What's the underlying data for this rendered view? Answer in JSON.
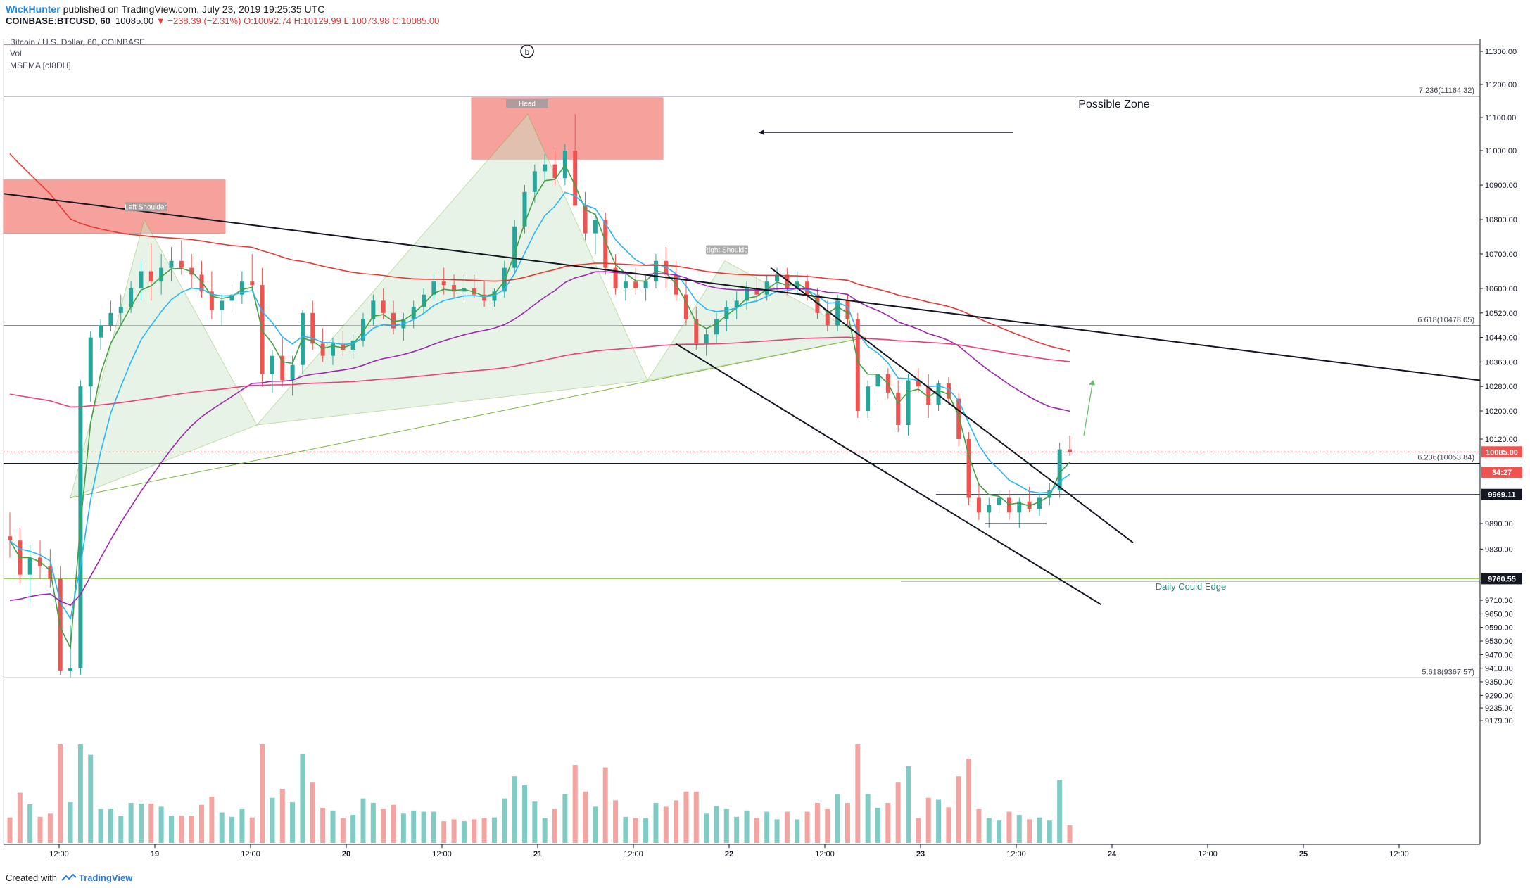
{
  "header": {
    "author": "WickHunter",
    "published_text": "published on TradingView.com, July 23, 2019 19:25:35 UTC",
    "symbol": "COINBASE:BTCUSD, 60",
    "last": "10085.00",
    "change": "▼ −238.39 (−2.31%)",
    "ohlc": "O:10092.74 H:10129.99 L:10073.98 C:10085.00"
  },
  "legend": {
    "title": "Bitcoin / U.S. Dollar, 60, COINBASE",
    "vol": "Vol",
    "msema": "MSEMA [cI8DH]",
    "marker": "b"
  },
  "footer": {
    "created_with": "Created with",
    "brand": "TradingView"
  },
  "chart_data": {
    "type": "candlestick",
    "symbol": "COINBASE:BTCUSD",
    "interval": "60",
    "y_axis": {
      "ticks": [
        11300.0,
        11200.0,
        11100.0,
        11000.0,
        10900.0,
        10800.0,
        10700.0,
        10600.0,
        10520.0,
        10440.0,
        10360.0,
        10280.0,
        10200.0,
        10120.0,
        9890.0,
        9830.0,
        9710.0,
        9650.0,
        9590.0,
        9530.0,
        9470.0,
        9410.0,
        9350.0,
        9290.0,
        9235.0,
        9179.0
      ]
    },
    "x_axis": {
      "labels": [
        "12:00",
        "19",
        "12:00",
        "20",
        "12:00",
        "21",
        "12:00",
        "22",
        "12:00",
        "23",
        "12:00",
        "24",
        "12:00",
        "25",
        "12:00"
      ]
    },
    "price_tags": [
      {
        "value": 10085.0,
        "label": "10085.00",
        "color": "#ef5350"
      },
      {
        "value": 10030.0,
        "label": "34:27",
        "color": "#ef5350"
      },
      {
        "value": 9969.11,
        "label": "9969.11",
        "color": "#131722"
      },
      {
        "value": 9760.55,
        "label": "9760.55",
        "color": "#131722"
      }
    ],
    "fib_levels": [
      {
        "value": 11164.32,
        "label": "7.236(11164.32)"
      },
      {
        "value": 10478.05,
        "label": "6.618(10478.05)"
      },
      {
        "value": 10053.84,
        "label": "6.236(10053.84)"
      },
      {
        "value": 9367.57,
        "label": "5.618(9367.57)"
      }
    ],
    "annotations": {
      "possible_zone": "Possible Zone",
      "daily_cloud": "Daily Could Edge",
      "left_shoulder": "Left Shoulder",
      "head": "Head",
      "right_shoulder": "Right Shoulder"
    },
    "colors": {
      "up": "#26a69a",
      "down": "#ef5350",
      "vol_up": "#80cbc4",
      "vol_down": "#f4a4a0",
      "ema_green": "#43a047",
      "ema_blue": "#29b6f6",
      "ema_purple": "#9c27b0",
      "ema_red": "#e53935",
      "ema_pink": "#ec407a",
      "zone": "#f4827b"
    },
    "candles_ohlc": [
      [
        9860,
        9920,
        9810,
        9850
      ],
      [
        9850,
        9880,
        9750,
        9770
      ],
      [
        9770,
        9840,
        9700,
        9810
      ],
      [
        9810,
        9850,
        9760,
        9790
      ],
      [
        9790,
        9830,
        9740,
        9760
      ],
      [
        9760,
        9790,
        9380,
        9400
      ],
      [
        9400,
        9600,
        9370,
        9410
      ],
      [
        9410,
        10300,
        9380,
        10280
      ],
      [
        10280,
        10460,
        10230,
        10440
      ],
      [
        10440,
        10500,
        10400,
        10480
      ],
      [
        10480,
        10560,
        10460,
        10520
      ],
      [
        10520,
        10580,
        10480,
        10540
      ],
      [
        10540,
        10620,
        10520,
        10600
      ],
      [
        10600,
        10680,
        10560,
        10650
      ],
      [
        10650,
        10730,
        10560,
        10620
      ],
      [
        10620,
        10700,
        10580,
        10660
      ],
      [
        10660,
        10720,
        10620,
        10680
      ],
      [
        10680,
        10740,
        10640,
        10660
      ],
      [
        10660,
        10700,
        10600,
        10640
      ],
      [
        10640,
        10680,
        10570,
        10590
      ],
      [
        10590,
        10650,
        10500,
        10530
      ],
      [
        10530,
        10580,
        10480,
        10560
      ],
      [
        10560,
        10610,
        10520,
        10580
      ],
      [
        10580,
        10650,
        10550,
        10620
      ],
      [
        10620,
        10700,
        10590,
        10610
      ],
      [
        10610,
        10660,
        10280,
        10320
      ],
      [
        10320,
        10400,
        10260,
        10380
      ],
      [
        10380,
        10440,
        10280,
        10300
      ],
      [
        10300,
        10380,
        10250,
        10350
      ],
      [
        10350,
        10530,
        10320,
        10520
      ],
      [
        10520,
        10560,
        10400,
        10420
      ],
      [
        10420,
        10470,
        10360,
        10380
      ],
      [
        10380,
        10440,
        10350,
        10420
      ],
      [
        10420,
        10460,
        10380,
        10400
      ],
      [
        10400,
        10450,
        10370,
        10430
      ],
      [
        10430,
        10520,
        10410,
        10500
      ],
      [
        10500,
        10580,
        10480,
        10560
      ],
      [
        10560,
        10600,
        10500,
        10520
      ],
      [
        10520,
        10560,
        10450,
        10470
      ],
      [
        10470,
        10520,
        10430,
        10500
      ],
      [
        10500,
        10560,
        10470,
        10540
      ],
      [
        10540,
        10600,
        10520,
        10580
      ],
      [
        10580,
        10640,
        10560,
        10620
      ],
      [
        10620,
        10660,
        10580,
        10610
      ],
      [
        10610,
        10640,
        10570,
        10590
      ],
      [
        10590,
        10640,
        10560,
        10600
      ],
      [
        10600,
        10640,
        10570,
        10580
      ],
      [
        10580,
        10620,
        10540,
        10560
      ],
      [
        10560,
        10600,
        10540,
        10590
      ],
      [
        10590,
        10680,
        10570,
        10660
      ],
      [
        10660,
        10800,
        10640,
        10780
      ],
      [
        10780,
        10900,
        10760,
        10880
      ],
      [
        10880,
        10960,
        10850,
        10940
      ],
      [
        10940,
        10990,
        10910,
        10960
      ],
      [
        10960,
        11000,
        10900,
        10920
      ],
      [
        10920,
        11020,
        10900,
        11000
      ],
      [
        11000,
        11110,
        10960,
        10840
      ],
      [
        10840,
        10880,
        10740,
        10760
      ],
      [
        10760,
        10820,
        10700,
        10800
      ],
      [
        10800,
        10820,
        10640,
        10660
      ],
      [
        10660,
        10700,
        10580,
        10600
      ],
      [
        10600,
        10650,
        10560,
        10620
      ],
      [
        10620,
        10660,
        10580,
        10600
      ],
      [
        10600,
        10640,
        10560,
        10620
      ],
      [
        10620,
        10700,
        10600,
        10680
      ],
      [
        10680,
        10720,
        10600,
        10640
      ],
      [
        10640,
        10680,
        10560,
        10580
      ],
      [
        10580,
        10620,
        10480,
        10500
      ],
      [
        10500,
        10540,
        10400,
        10420
      ],
      [
        10420,
        10470,
        10380,
        10450
      ],
      [
        10450,
        10520,
        10420,
        10500
      ],
      [
        10500,
        10560,
        10460,
        10540
      ],
      [
        10540,
        10590,
        10500,
        10560
      ],
      [
        10560,
        10620,
        10530,
        10600
      ],
      [
        10600,
        10640,
        10560,
        10580
      ],
      [
        10580,
        10640,
        10560,
        10620
      ],
      [
        10620,
        10660,
        10590,
        10640
      ],
      [
        10640,
        10660,
        10580,
        10600
      ],
      [
        10600,
        10650,
        10580,
        10620
      ],
      [
        10620,
        10640,
        10560,
        10580
      ],
      [
        10580,
        10600,
        10500,
        10520
      ],
      [
        10520,
        10560,
        10460,
        10480
      ],
      [
        10480,
        10580,
        10460,
        10560
      ],
      [
        10560,
        10580,
        10480,
        10500
      ],
      [
        10500,
        10520,
        10180,
        10200
      ],
      [
        10200,
        10300,
        10180,
        10280
      ],
      [
        10280,
        10340,
        10230,
        10320
      ],
      [
        10320,
        10340,
        10240,
        10260
      ],
      [
        10260,
        10300,
        10140,
        10160
      ],
      [
        10160,
        10320,
        10130,
        10300
      ],
      [
        10300,
        10340,
        10260,
        10280
      ],
      [
        10280,
        10320,
        10180,
        10220
      ],
      [
        10220,
        10300,
        10200,
        10290
      ],
      [
        10290,
        10310,
        10220,
        10240
      ],
      [
        10240,
        10260,
        10100,
        10120
      ],
      [
        10120,
        10140,
        9940,
        9960
      ],
      [
        9960,
        10000,
        9900,
        9920
      ],
      [
        9920,
        9960,
        9880,
        9940
      ],
      [
        9940,
        9980,
        9920,
        9960
      ],
      [
        9960,
        9980,
        9900,
        9920
      ],
      [
        9920,
        9960,
        9880,
        9950
      ],
      [
        9950,
        9990,
        9920,
        9930
      ],
      [
        9930,
        9970,
        9910,
        9960
      ],
      [
        9960,
        10000,
        9940,
        9980
      ],
      [
        9980,
        10110,
        9960,
        10092
      ],
      [
        10092,
        10130,
        10074,
        10085
      ]
    ]
  }
}
